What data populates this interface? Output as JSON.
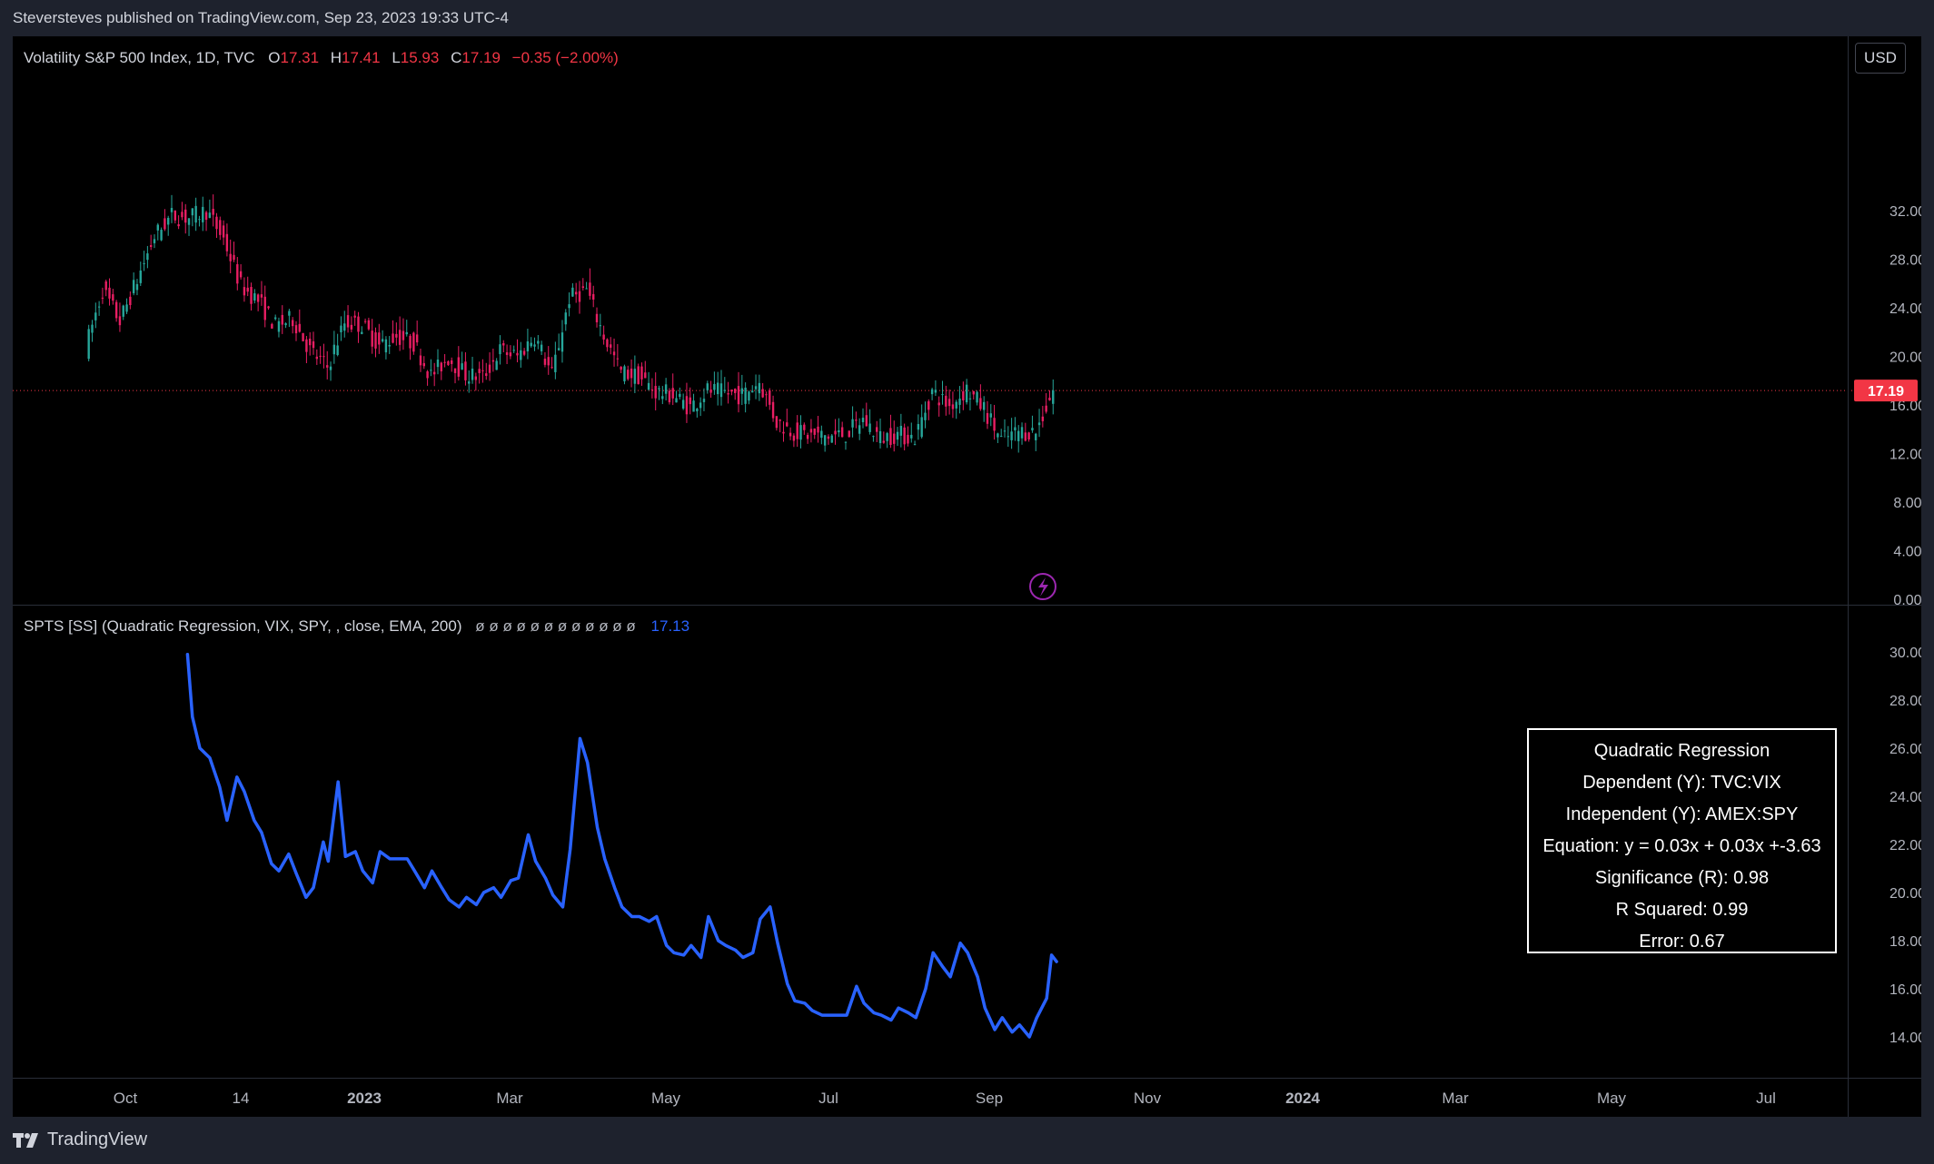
{
  "publish": "Steversteves published on TradingView.com, Sep 23, 2023 19:33 UTC-4",
  "legend_main": {
    "title": "Volatility S&P 500 Index, 1D, TVC",
    "o": "17.31",
    "h": "17.41",
    "l": "15.93",
    "c": "17.19",
    "chg": "−0.35 (−2.00%)"
  },
  "legend_ind": {
    "title": "SPTS [SS] (Quadratic Regression, VIX, SPY, , close, EMA, 200)",
    "nulls": "ø ø ø ø ø ø ø ø ø ø ø ø",
    "last": "17.13"
  },
  "currency": "USD",
  "price_label": "17.19",
  "footer": "TradingView",
  "stats": {
    "title": "Quadratic Regression",
    "dependent": "Dependent (Y): TVC:VIX",
    "independent": "Independent (Y): AMEX:SPY",
    "equation": "Equation: y = 0.03x + 0.03x +-3.63",
    "significance": "Significance (R):  0.98",
    "r_squared": "R Squared:  0.99",
    "error": "Error:  0.67"
  },
  "colors": {
    "up": "#26a69a",
    "down": "#ef5350",
    "downcandle": "#e91e63",
    "line": "#2962ff",
    "last_price": "#f23645",
    "lightning": "#9c27b0"
  },
  "chart_data": [
    {
      "type": "candlestick",
      "title": "Volatility S&P 500 Index, 1D, TVC",
      "y_ticks": [
        "32.00",
        "28.00",
        "24.00",
        "20.00",
        "16.00",
        "12.00",
        "8.00",
        "4.00",
        "0.00"
      ],
      "ylim": [
        0,
        36
      ],
      "current": 17.19,
      "points": [
        [
          "2022-08-26",
          20.6
        ],
        [
          "2022-09-02",
          25.5
        ],
        [
          "2022-09-09",
          22.9
        ],
        [
          "2022-09-16",
          26.3
        ],
        [
          "2022-09-23",
          29.9
        ],
        [
          "2022-09-30",
          31.6
        ],
        [
          "2022-10-07",
          31.4
        ],
        [
          "2022-10-14",
          32.0
        ],
        [
          "2022-10-21",
          29.7
        ],
        [
          "2022-10-28",
          25.8
        ],
        [
          "2022-11-04",
          24.6
        ],
        [
          "2022-11-11",
          22.5
        ],
        [
          "2022-11-18",
          23.1
        ],
        [
          "2022-11-25",
          20.5
        ],
        [
          "2022-12-02",
          19.1
        ],
        [
          "2022-12-09",
          22.8
        ],
        [
          "2022-12-16",
          22.6
        ],
        [
          "2022-12-23",
          20.9
        ],
        [
          "2022-12-30",
          21.7
        ],
        [
          "2023-01-06",
          21.1
        ],
        [
          "2023-01-13",
          18.4
        ],
        [
          "2023-01-20",
          19.9
        ],
        [
          "2023-01-27",
          18.5
        ],
        [
          "2023-02-03",
          18.3
        ],
        [
          "2023-02-10",
          20.5
        ],
        [
          "2023-02-17",
          20.0
        ],
        [
          "2023-02-24",
          21.7
        ],
        [
          "2023-03-03",
          18.5
        ],
        [
          "2023-03-10",
          24.8
        ],
        [
          "2023-03-17",
          25.5
        ],
        [
          "2023-03-24",
          21.7
        ],
        [
          "2023-03-31",
          18.7
        ],
        [
          "2023-04-07",
          18.4
        ],
        [
          "2023-04-14",
          17.1
        ],
        [
          "2023-04-21",
          16.8
        ],
        [
          "2023-04-28",
          15.8
        ],
        [
          "2023-05-05",
          17.2
        ],
        [
          "2023-05-12",
          17.0
        ],
        [
          "2023-05-19",
          16.8
        ],
        [
          "2023-05-26",
          17.9
        ],
        [
          "2023-06-02",
          14.6
        ],
        [
          "2023-06-09",
          13.8
        ],
        [
          "2023-06-16",
          13.5
        ],
        [
          "2023-06-23",
          13.4
        ],
        [
          "2023-06-30",
          13.6
        ],
        [
          "2023-07-07",
          14.8
        ],
        [
          "2023-07-14",
          13.3
        ],
        [
          "2023-07-21",
          13.6
        ],
        [
          "2023-07-28",
          13.3
        ],
        [
          "2023-08-04",
          17.1
        ],
        [
          "2023-08-11",
          15.9
        ],
        [
          "2023-08-18",
          17.3
        ],
        [
          "2023-08-25",
          15.7
        ],
        [
          "2023-09-01",
          13.1
        ],
        [
          "2023-09-08",
          13.8
        ],
        [
          "2023-09-15",
          13.8
        ],
        [
          "2023-09-22",
          17.2
        ]
      ]
    },
    {
      "type": "line",
      "title": "SPTS [SS] (Quadratic Regression, VIX, SPY, , close, EMA, 200)",
      "y_ticks": [
        "30.00",
        "28.00",
        "26.00",
        "24.00",
        "22.00",
        "20.00",
        "18.00",
        "16.00",
        "14.00"
      ],
      "ylim": [
        13,
        30.6
      ],
      "last": 17.13,
      "points": [
        [
          "2022-10-05",
          29.9
        ],
        [
          "2022-10-07",
          27.3
        ],
        [
          "2022-10-10",
          26.0
        ],
        [
          "2022-10-14",
          25.6
        ],
        [
          "2022-10-18",
          24.4
        ],
        [
          "2022-10-21",
          23.0
        ],
        [
          "2022-10-25",
          24.8
        ],
        [
          "2022-10-28",
          24.2
        ],
        [
          "2022-11-01",
          23.0
        ],
        [
          "2022-11-04",
          22.5
        ],
        [
          "2022-11-08",
          21.2
        ],
        [
          "2022-11-11",
          20.9
        ],
        [
          "2022-11-15",
          21.6
        ],
        [
          "2022-11-18",
          20.8
        ],
        [
          "2022-11-22",
          19.8
        ],
        [
          "2022-11-25",
          20.2
        ],
        [
          "2022-11-29",
          22.1
        ],
        [
          "2022-12-01",
          21.3
        ],
        [
          "2022-12-05",
          24.6
        ],
        [
          "2022-12-08",
          21.5
        ],
        [
          "2022-12-12",
          21.7
        ],
        [
          "2022-12-15",
          20.9
        ],
        [
          "2022-12-19",
          20.4
        ],
        [
          "2022-12-22",
          21.7
        ],
        [
          "2022-12-26",
          21.4
        ],
        [
          "2022-12-29",
          21.4
        ],
        [
          "2023-01-02",
          21.4
        ],
        [
          "2023-01-05",
          20.9
        ],
        [
          "2023-01-09",
          20.2
        ],
        [
          "2023-01-12",
          20.9
        ],
        [
          "2023-01-16",
          20.2
        ],
        [
          "2023-01-19",
          19.7
        ],
        [
          "2023-01-23",
          19.4
        ],
        [
          "2023-01-26",
          19.8
        ],
        [
          "2023-01-30",
          19.5
        ],
        [
          "2023-02-02",
          20.0
        ],
        [
          "2023-02-06",
          20.2
        ],
        [
          "2023-02-09",
          19.8
        ],
        [
          "2023-02-13",
          20.5
        ],
        [
          "2023-02-16",
          20.6
        ],
        [
          "2023-02-20",
          22.4
        ],
        [
          "2023-02-23",
          21.3
        ],
        [
          "2023-02-27",
          20.6
        ],
        [
          "2023-03-02",
          19.9
        ],
        [
          "2023-03-06",
          19.4
        ],
        [
          "2023-03-09",
          21.8
        ],
        [
          "2023-03-13",
          26.4
        ],
        [
          "2023-03-16",
          25.4
        ],
        [
          "2023-03-20",
          22.7
        ],
        [
          "2023-03-23",
          21.4
        ],
        [
          "2023-03-27",
          20.2
        ],
        [
          "2023-03-30",
          19.4
        ],
        [
          "2023-04-03",
          19.0
        ],
        [
          "2023-04-06",
          19.0
        ],
        [
          "2023-04-10",
          18.8
        ],
        [
          "2023-04-13",
          19.0
        ],
        [
          "2023-04-17",
          17.8
        ],
        [
          "2023-04-20",
          17.5
        ],
        [
          "2023-04-24",
          17.4
        ],
        [
          "2023-04-27",
          17.8
        ],
        [
          "2023-05-01",
          17.3
        ],
        [
          "2023-05-04",
          19.0
        ],
        [
          "2023-05-08",
          18.0
        ],
        [
          "2023-05-11",
          17.8
        ],
        [
          "2023-05-15",
          17.6
        ],
        [
          "2023-05-18",
          17.3
        ],
        [
          "2023-05-22",
          17.5
        ],
        [
          "2023-05-25",
          18.9
        ],
        [
          "2023-05-29",
          19.4
        ],
        [
          "2023-06-01",
          17.9
        ],
        [
          "2023-06-05",
          16.2
        ],
        [
          "2023-06-08",
          15.5
        ],
        [
          "2023-06-12",
          15.4
        ],
        [
          "2023-06-15",
          15.1
        ],
        [
          "2023-06-19",
          14.9
        ],
        [
          "2023-06-22",
          14.9
        ],
        [
          "2023-06-26",
          14.9
        ],
        [
          "2023-06-29",
          14.9
        ],
        [
          "2023-07-03",
          16.1
        ],
        [
          "2023-07-06",
          15.4
        ],
        [
          "2023-07-10",
          15.0
        ],
        [
          "2023-07-13",
          14.9
        ],
        [
          "2023-07-17",
          14.7
        ],
        [
          "2023-07-20",
          15.2
        ],
        [
          "2023-07-24",
          15.0
        ],
        [
          "2023-07-27",
          14.8
        ],
        [
          "2023-07-31",
          16.0
        ],
        [
          "2023-08-03",
          17.5
        ],
        [
          "2023-08-07",
          16.9
        ],
        [
          "2023-08-10",
          16.5
        ],
        [
          "2023-08-14",
          17.9
        ],
        [
          "2023-08-17",
          17.5
        ],
        [
          "2023-08-21",
          16.5
        ],
        [
          "2023-08-24",
          15.2
        ],
        [
          "2023-08-28",
          14.3
        ],
        [
          "2023-08-31",
          14.8
        ],
        [
          "2023-09-04",
          14.2
        ],
        [
          "2023-09-07",
          14.5
        ],
        [
          "2023-09-11",
          14.0
        ],
        [
          "2023-09-14",
          14.8
        ],
        [
          "2023-09-18",
          15.6
        ],
        [
          "2023-09-20",
          17.4
        ],
        [
          "2023-09-22",
          17.13
        ]
      ]
    }
  ],
  "time_axis": {
    "labels": [
      "Oct",
      "14",
      "2023",
      "Mar",
      "May",
      "Jul",
      "Sep",
      "Nov",
      "2024",
      "Mar",
      "May",
      "Jul"
    ],
    "bold": [
      false,
      false,
      true,
      false,
      false,
      false,
      false,
      false,
      true,
      false,
      false,
      false
    ]
  }
}
